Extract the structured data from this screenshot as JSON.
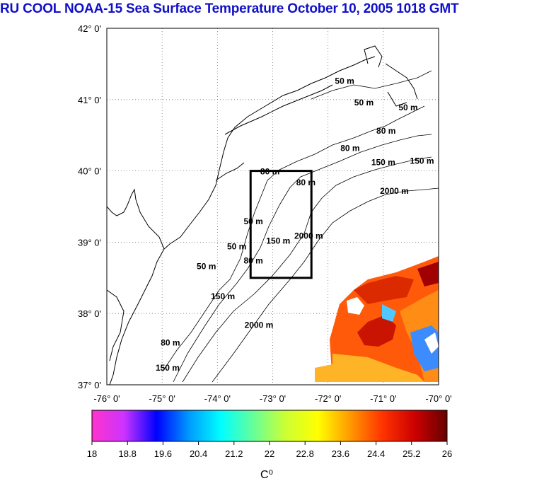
{
  "title": "RU COOL  NOAA-15 Sea Surface Temperature October 10, 2005 1018 GMT",
  "map": {
    "lat_labels": [
      "42° 0'",
      "41° 0'",
      "40° 0'",
      "39° 0'",
      "38° 0'",
      "37° 0'"
    ],
    "lon_labels": [
      "-76° 0'",
      "-75° 0'",
      "-74° 0'",
      "-73° 0'",
      "-72° 0'",
      "-71° 0'",
      "-70° 0'"
    ],
    "lat_range": [
      37,
      42
    ],
    "lon_range": [
      -76,
      -70
    ],
    "study_box": {
      "lon_min": -73.4,
      "lon_max": -72.3,
      "lat_min": 38.5,
      "lat_max": 40.0
    },
    "contour_labels": [
      {
        "text": "50 m",
        "lon": -71.7,
        "lat": 41.22
      },
      {
        "text": "50 m",
        "lon": -71.35,
        "lat": 40.92
      },
      {
        "text": "50 m",
        "lon": -70.55,
        "lat": 40.85
      },
      {
        "text": "80 m",
        "lon": -70.95,
        "lat": 40.52
      },
      {
        "text": "80 m",
        "lon": -71.6,
        "lat": 40.28
      },
      {
        "text": "150 m",
        "lon": -71.0,
        "lat": 40.08
      },
      {
        "text": "150 m",
        "lon": -70.3,
        "lat": 40.1
      },
      {
        "text": "2000 m",
        "lon": -70.8,
        "lat": 39.68
      },
      {
        "text": "80 m",
        "lon": -73.05,
        "lat": 39.95
      },
      {
        "text": "80 m",
        "lon": -72.4,
        "lat": 39.8
      },
      {
        "text": "50 m",
        "lon": -73.35,
        "lat": 39.25
      },
      {
        "text": "150 m",
        "lon": -72.9,
        "lat": 38.98
      },
      {
        "text": "2000 m",
        "lon": -72.35,
        "lat": 39.05
      },
      {
        "text": "50 m",
        "lon": -73.65,
        "lat": 38.9
      },
      {
        "text": "80 m",
        "lon": -73.35,
        "lat": 38.7
      },
      {
        "text": "50 m",
        "lon": -74.2,
        "lat": 38.62
      },
      {
        "text": "150 m",
        "lon": -73.9,
        "lat": 38.2
      },
      {
        "text": "2000 m",
        "lon": -73.25,
        "lat": 37.8
      },
      {
        "text": "80 m",
        "lon": -74.85,
        "lat": 37.55
      },
      {
        "text": "150 m",
        "lon": -74.9,
        "lat": 37.2
      }
    ]
  },
  "colorbar": {
    "labels": [
      "18",
      "18.8",
      "19.6",
      "20.4",
      "21.2",
      "22",
      "22.8",
      "23.6",
      "24.4",
      "25.2",
      "26"
    ],
    "min": 18,
    "max": 26,
    "unit": "C⁰",
    "colors": [
      "#ff33cc",
      "#cc33ff",
      "#0000ff",
      "#0099ff",
      "#00ffff",
      "#66ff99",
      "#ccff33",
      "#ffff00",
      "#ff9900",
      "#ff3300",
      "#cc0000",
      "#660000"
    ]
  }
}
